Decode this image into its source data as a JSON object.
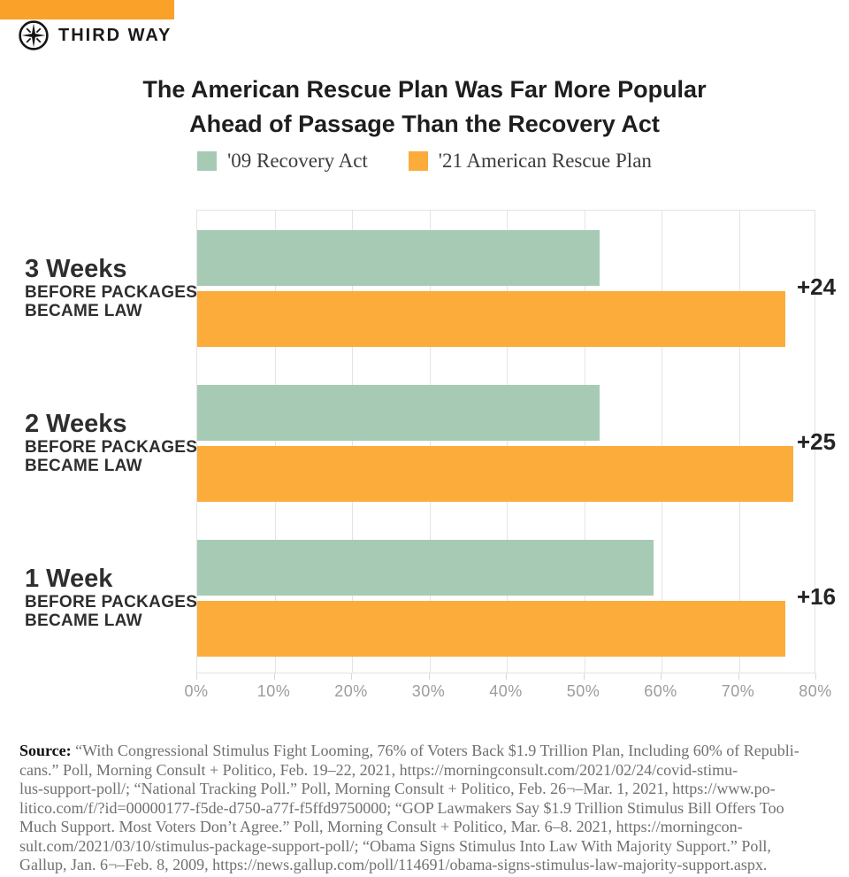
{
  "brand": {
    "name": "THIRD WAY",
    "accent_color": "#F9A128",
    "logo_icon": "compass-star-icon"
  },
  "chart_data": {
    "type": "bar",
    "orientation": "horizontal",
    "title": "The American Rescue Plan Was Far More Popular Ahead of Passage Than the Recovery Act",
    "title_lines": [
      "The American Rescue Plan Was Far More Popular",
      "Ahead of Passage Than the Recovery Act"
    ],
    "xlabel": "",
    "ylabel": "",
    "xlim": [
      0,
      80
    ],
    "x_ticks": [
      "0%",
      "10%",
      "20%",
      "30%",
      "40%",
      "50%",
      "60%",
      "70%",
      "80%"
    ],
    "grid": true,
    "legend_position": "top",
    "categories": [
      {
        "label": "3 Weeks",
        "sublabel_lines": [
          "BEFORE PACKAGES",
          "BECAME LAW"
        ]
      },
      {
        "label": "2 Weeks",
        "sublabel_lines": [
          "BEFORE PACKAGES",
          "BECAME LAW"
        ]
      },
      {
        "label": "1 Week",
        "sublabel_lines": [
          "BEFORE PACKAGES",
          "BECAME LAW"
        ]
      }
    ],
    "series": [
      {
        "name": "'09 Recovery Act",
        "color": "#A7CAB5",
        "values": [
          52,
          52,
          59
        ]
      },
      {
        "name": "'21 American Rescue Plan",
        "color": "#FBAC3B",
        "values": [
          76,
          77,
          76
        ]
      }
    ],
    "diff_labels": [
      "+24",
      "+25",
      "+16"
    ]
  },
  "source": {
    "label": "Source:",
    "lines": [
      "“With Congressional Stimulus Fight Looming, 76% of Voters Back $1.9 Trillion Plan, Including 60% of Republi-",
      "cans.” Poll, Morning Consult + Politico, Feb. 19–22, 2021, https://morningconsult.com/2021/02/24/covid-stimu-",
      "lus-support-poll/; “National Tracking Poll.” Poll, Morning Consult + Politico, Feb. 26¬–Mar. 1, 2021, https://www.po-",
      "litico.com/f/?id=00000177-f5de-d750-a77f-f5ffd9750000; “GOP Lawmakers Say $1.9 Trillion Stimulus Bill Offers Too",
      "Much Support. Most Voters Don’t Agree.” Poll, Morning Consult + Politico, Mar. 6–8. 2021, https://morningcon-",
      "sult.com/2021/03/10/stimulus-package-support-poll/; “Obama Signs Stimulus Into Law With Majority Support.” Poll,",
      "Gallup, Jan. 6¬–Feb. 8, 2009, https://news.gallup.com/poll/114691/obama-signs-stimulus-law-majority-support.aspx."
    ]
  }
}
